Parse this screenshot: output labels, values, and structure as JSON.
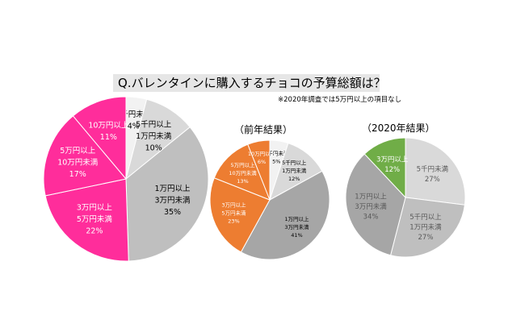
{
  "title": "Q.バレンタインに購入するチョコの予算総額は？",
  "note": "※2020年調査では5万円以上の項目なし",
  "chart_data": [
    {
      "type": "pie",
      "title": "",
      "slices": [
        {
          "label": [
            "5千円未満"
          ],
          "value": 4,
          "color": "#f2f2f2",
          "text_color": "#000000"
        },
        {
          "label": [
            "5千円以上",
            "1万円未満"
          ],
          "value": 10,
          "color": "#d9d9d9",
          "text_color": "#000000"
        },
        {
          "label": [
            "1万円以上",
            "3万円未満"
          ],
          "value": 35,
          "color": "#bfbfbf",
          "text_color": "#000000"
        },
        {
          "label": [
            "3万円以上",
            "5万円未満"
          ],
          "value": 22,
          "color": "#ff2d9b",
          "text_color": "#ffffff"
        },
        {
          "label": [
            "5万円以上",
            "10万円未満"
          ],
          "value": 17,
          "color": "#ff2d9b",
          "text_color": "#ffffff"
        },
        {
          "label": [
            "10万円以上"
          ],
          "value": 11,
          "color": "#ff2d9b",
          "text_color": "#ffffff"
        }
      ]
    },
    {
      "type": "pie",
      "title": "（前年結果）",
      "slices": [
        {
          "label": [
            "5千円未満"
          ],
          "value": 5,
          "color": "#f2f2f2",
          "text_color": "#000000"
        },
        {
          "label": [
            "5千円以上",
            "1万円未満"
          ],
          "value": 12,
          "color": "#d9d9d9",
          "text_color": "#000000"
        },
        {
          "label": [
            "1万円以上",
            "3万円未満"
          ],
          "value": 41,
          "color": "#a6a6a6",
          "text_color": "#000000"
        },
        {
          "label": [
            "3万円以上",
            "5万円未満"
          ],
          "value": 23,
          "color": "#ed7d31",
          "text_color": "#ffffff"
        },
        {
          "label": [
            "5万円以上",
            "10万円未満"
          ],
          "value": 13,
          "color": "#ed7d31",
          "text_color": "#ffffff"
        },
        {
          "label": [
            "10万円以上"
          ],
          "value": 6,
          "color": "#ed7d31",
          "text_color": "#ffffff"
        }
      ]
    },
    {
      "type": "pie",
      "title": "（2020年結果）",
      "slices": [
        {
          "label": [
            "5千円未満"
          ],
          "value": 27,
          "color": "#d9d9d9",
          "text_color": "#595959"
        },
        {
          "label": [
            "5千円以上",
            "1万円未満"
          ],
          "value": 27,
          "color": "#bfbfbf",
          "text_color": "#595959"
        },
        {
          "label": [
            "1万円以上",
            "3万円未満"
          ],
          "value": 34,
          "color": "#a6a6a6",
          "text_color": "#595959"
        },
        {
          "label": [
            "3万円以上"
          ],
          "value": 12,
          "color": "#70ad47",
          "text_color": "#ffffff"
        }
      ]
    }
  ]
}
